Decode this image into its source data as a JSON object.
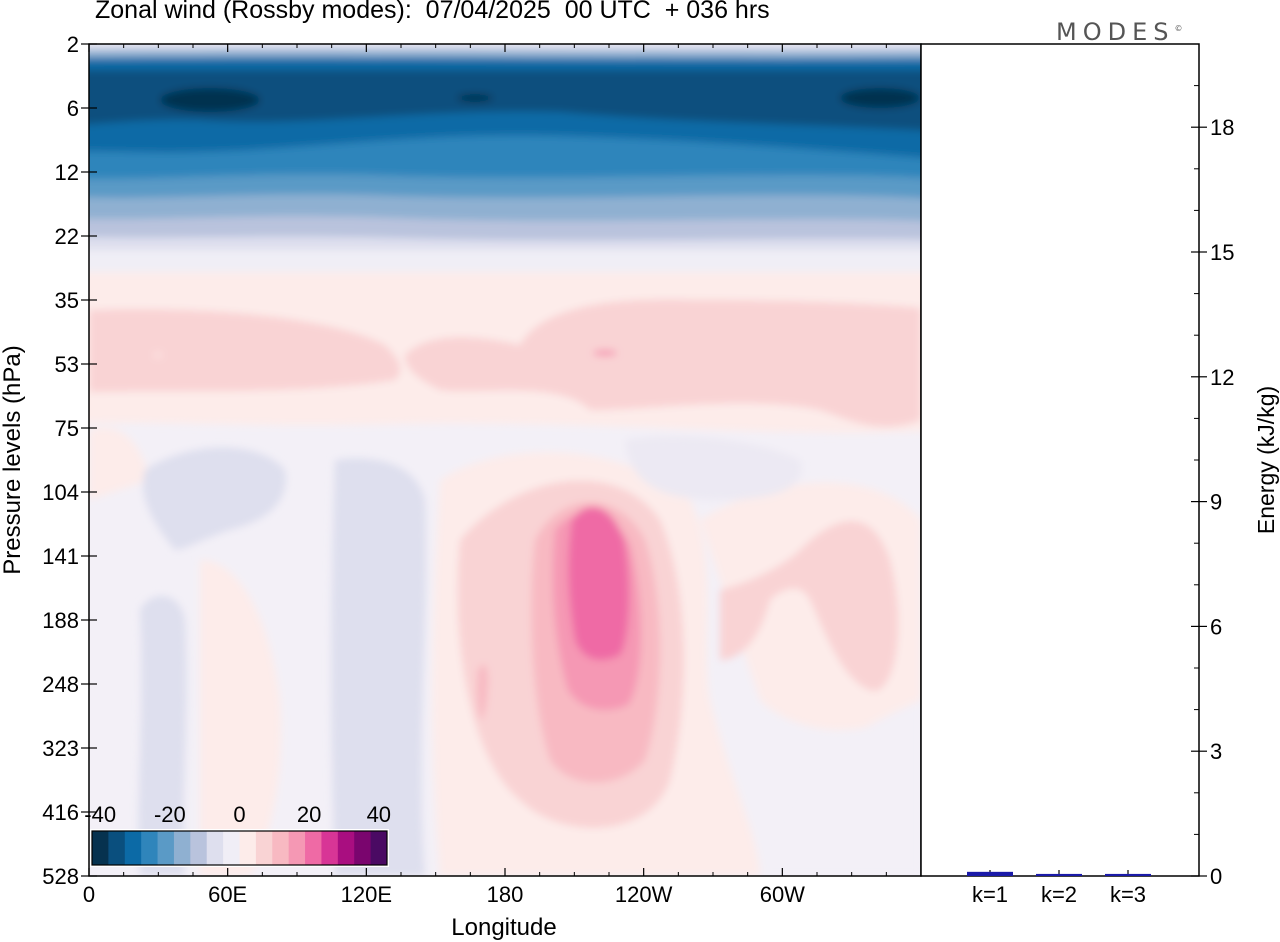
{
  "title": "Zonal wind (Rossby modes):  07/04/2025  00 UTC  + 036 hrs",
  "brand": "MODES",
  "brand_mark": "©",
  "colors": {
    "negative": [
      "#06324f",
      "#0a4f7e",
      "#0c6aa6",
      "#2f85bb",
      "#5a9ac6",
      "#8fb0d1",
      "#b9c3dd",
      "#dedfee"
    ],
    "near_zero": [
      "#f0eef6",
      "#fdecea"
    ],
    "positive": [
      "#f9d3d4",
      "#f8b9c2",
      "#f598b4",
      "#ef6aa5",
      "#d83596",
      "#a90e80",
      "#7a056e",
      "#4a0a63"
    ],
    "energy_bar": "#1a1aa8"
  },
  "chart_data": [
    {
      "type": "heatmap",
      "title": "Zonal wind (Rossby modes):  07/04/2025  00 UTC  + 036 hrs",
      "xlabel": "Longitude",
      "ylabel": "Pressure levels (hPa)",
      "x_ticks": [
        "0",
        "60E",
        "120E",
        "180",
        "120W",
        "60W"
      ],
      "x_tick_values": [
        0,
        60,
        120,
        180,
        240,
        300
      ],
      "xlim": [
        0,
        360
      ],
      "y_ticks": [
        "2",
        "6",
        "12",
        "22",
        "35",
        "53",
        "75",
        "104",
        "141",
        "188",
        "248",
        "323",
        "416",
        "528"
      ],
      "y_scale": "log",
      "colorbar": {
        "labels": [
          "-40",
          "-20",
          "0",
          "20",
          "40"
        ],
        "values": [
          -40,
          -20,
          0,
          20,
          40
        ],
        "levels": [
          -40,
          -35,
          -30,
          -25,
          -20,
          -15,
          -10,
          -5,
          0,
          5,
          10,
          15,
          20,
          25,
          30,
          35,
          40
        ],
        "placement": "bottom-left"
      },
      "features": [
        {
          "label": "Easterly core",
          "lon_range": [
            0,
            360
          ],
          "pressure_range": [
            2,
            15
          ],
          "value_min": -40
        },
        {
          "label": "Westerly jet core",
          "lon_range": [
            195,
            230
          ],
          "pressure_range": [
            104,
            300
          ],
          "value_max": 20
        }
      ]
    },
    {
      "type": "bar",
      "categories": [
        "k=1",
        "k=2",
        "k=3"
      ],
      "values": [
        0.1,
        0.05,
        0.05
      ],
      "ylabel": "Energy (kJ/kg)",
      "y_ticks": [
        "0",
        "3",
        "6",
        "9",
        "12",
        "15",
        "18"
      ],
      "y_tick_values": [
        0,
        3,
        6,
        9,
        12,
        15,
        18
      ],
      "ylim": [
        0,
        20
      ],
      "axis_side": "right"
    }
  ]
}
